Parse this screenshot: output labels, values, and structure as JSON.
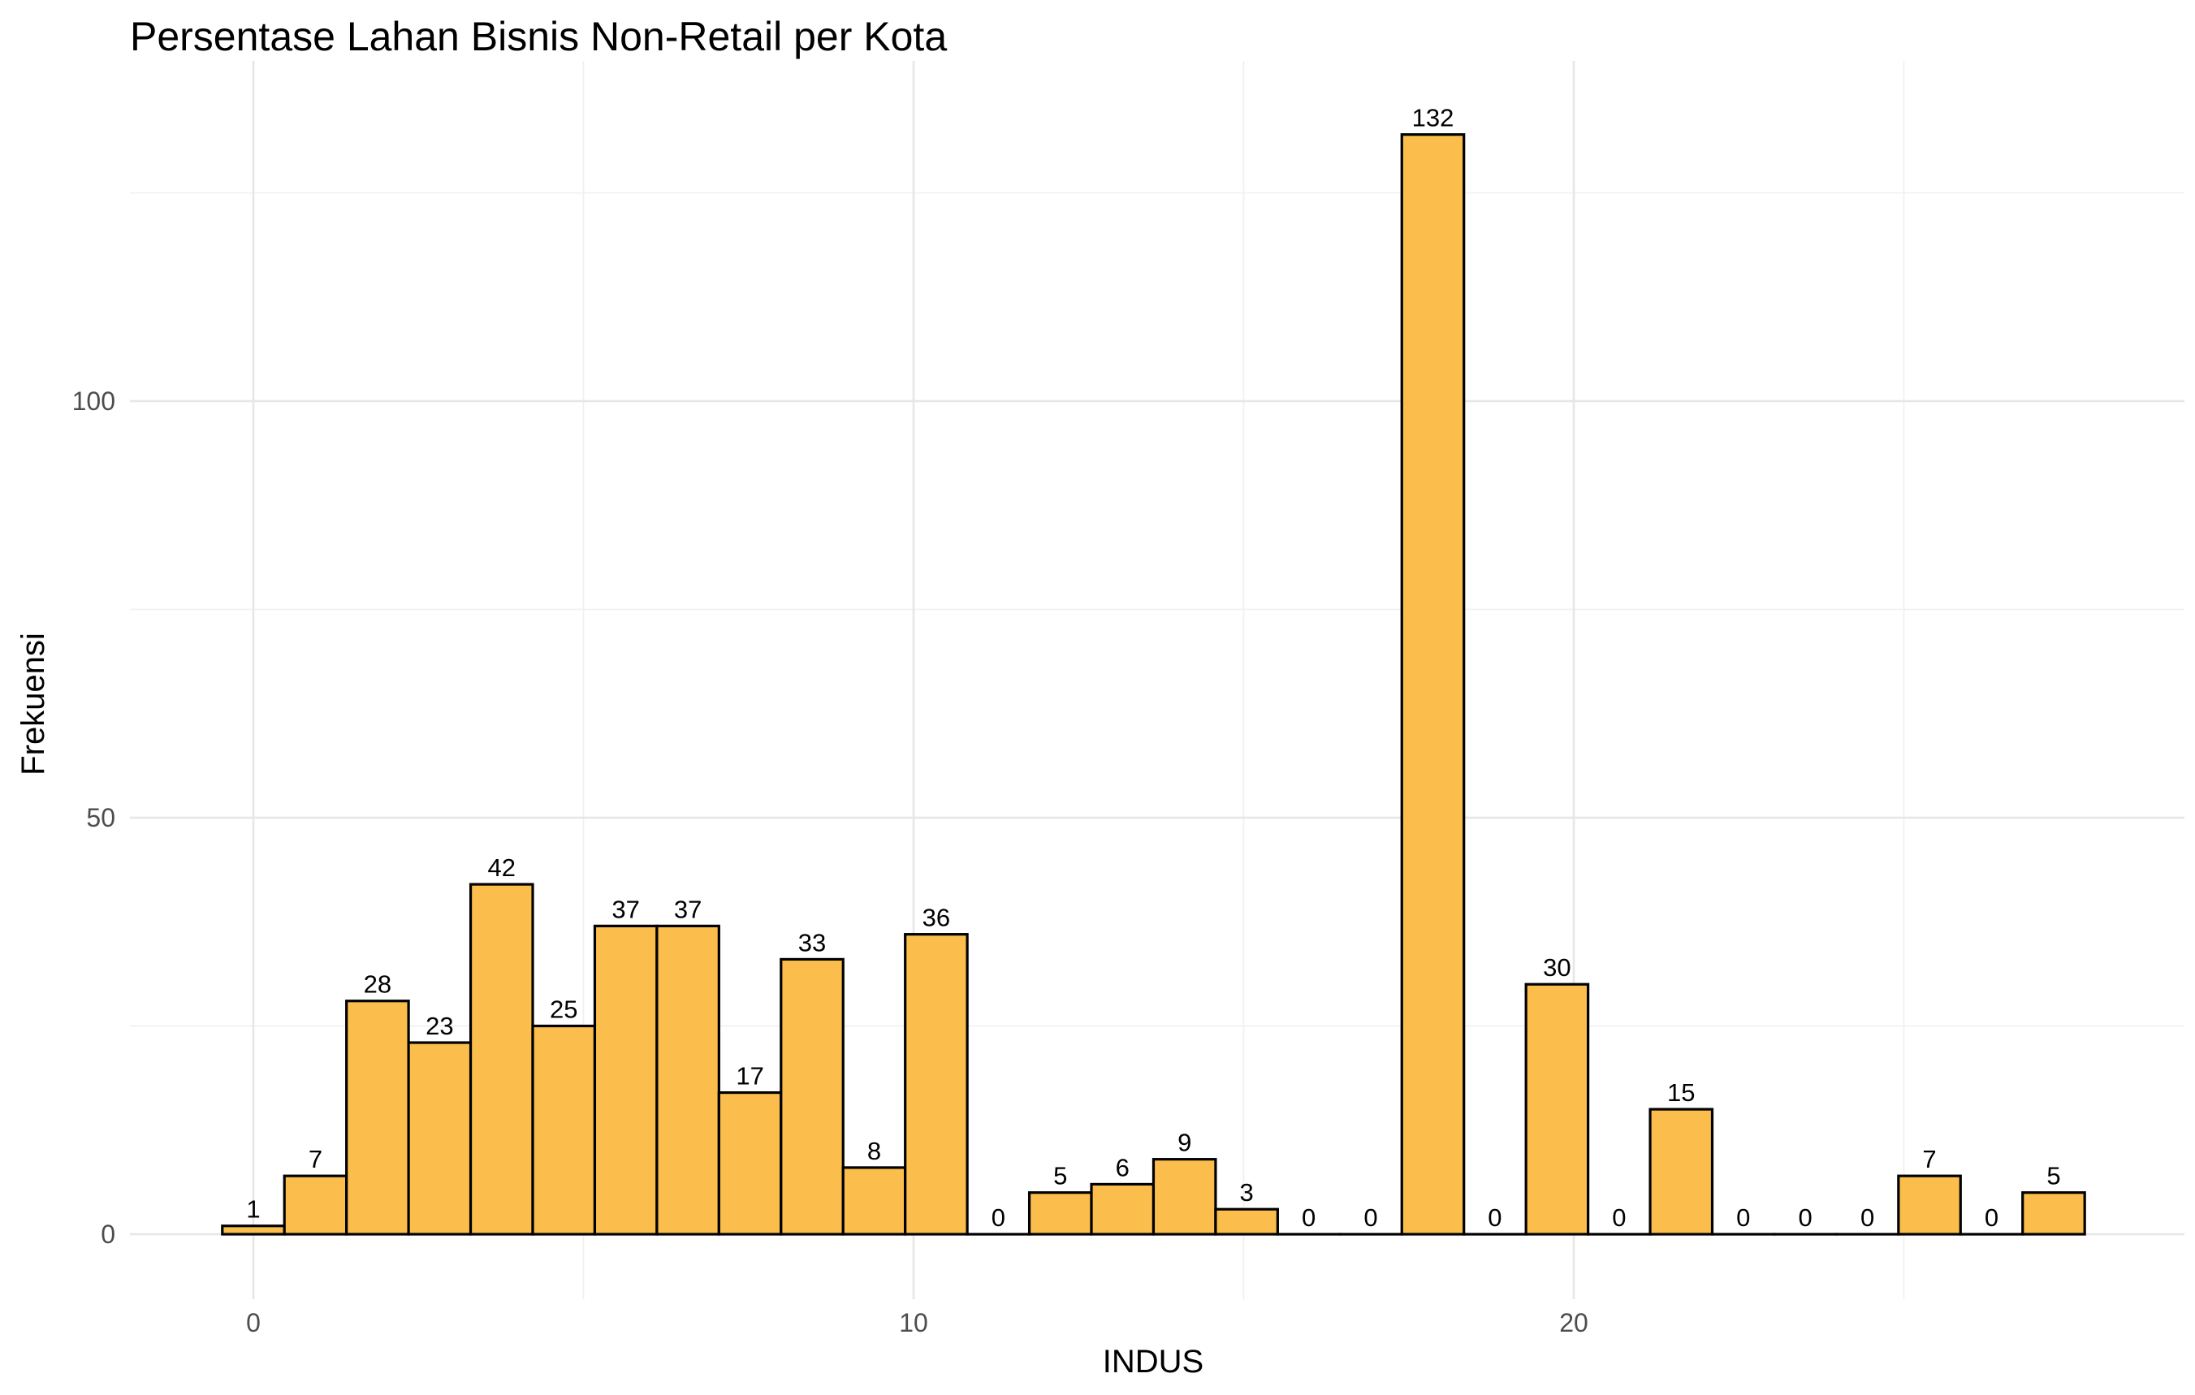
{
  "chart_data": {
    "type": "bar",
    "title": "Persentase Lahan Bisnis Non-Retail per Kota",
    "xlabel": "INDUS",
    "ylabel": "Frekuensi",
    "bin_width": 0.9403,
    "bin_centers": [
      0.0,
      0.9403,
      1.8806,
      2.8209,
      3.7612,
      4.7015,
      5.6418,
      6.5821,
      7.5224,
      8.4627,
      9.403,
      10.3433,
      11.2836,
      12.2239,
      13.1642,
      14.1045,
      15.0448,
      15.9851,
      16.9254,
      17.8657,
      18.806,
      19.7463,
      20.6866,
      21.6269,
      22.5672,
      23.5075,
      24.4478,
      25.3881,
      26.3284,
      27.2687
    ],
    "values": [
      1,
      7,
      28,
      23,
      42,
      25,
      37,
      37,
      17,
      33,
      8,
      36,
      0,
      5,
      6,
      9,
      3,
      0,
      0,
      132,
      0,
      30,
      0,
      15,
      0,
      0,
      0,
      7,
      0,
      5
    ],
    "x_ticks": [
      0,
      10,
      20
    ],
    "y_ticks": [
      0,
      50,
      100
    ],
    "xlim": [
      -1.9,
      29.2
    ],
    "ylim": [
      -6.6,
      138.6
    ],
    "grid": true,
    "legend": "none",
    "colors": {
      "bar_fill": "#FBBE4C",
      "bar_stroke": "#000000",
      "grid_major": "#E6E6E6",
      "grid_minor": "#F0F0F0"
    }
  }
}
